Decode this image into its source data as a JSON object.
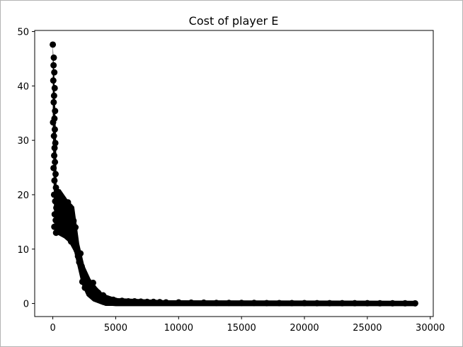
{
  "chart_data": {
    "type": "scatter",
    "title": "Cost of player E",
    "xlabel": "",
    "ylabel": "",
    "xlim": [
      -1440,
      30240
    ],
    "ylim": [
      -2.4,
      50.2
    ],
    "xticks": [
      0,
      5000,
      10000,
      15000,
      20000,
      25000,
      30000
    ],
    "yticks": [
      0,
      10,
      20,
      30,
      40,
      50
    ],
    "grid": false,
    "legend": "none",
    "marker_color": "#000000",
    "series": [
      {
        "points": [
          [
            0,
            47.6
          ],
          [
            80,
            45.2
          ],
          [
            60,
            43.8
          ],
          [
            120,
            42.5
          ],
          [
            40,
            41.0
          ],
          [
            150,
            39.6
          ],
          [
            100,
            38.2
          ],
          [
            70,
            37.0
          ],
          [
            180,
            35.4
          ],
          [
            130,
            34.0
          ],
          [
            20,
            33.3
          ],
          [
            160,
            32.0
          ],
          [
            90,
            30.8
          ],
          [
            200,
            29.5
          ],
          [
            140,
            28.6
          ],
          [
            110,
            27.2
          ],
          [
            170,
            26.0
          ],
          [
            60,
            24.9
          ],
          [
            220,
            23.8
          ],
          [
            130,
            22.6
          ],
          [
            250,
            21.3
          ],
          [
            100,
            20.0
          ],
          [
            190,
            18.8
          ],
          [
            280,
            17.6
          ],
          [
            150,
            16.4
          ],
          [
            230,
            15.3
          ],
          [
            120,
            14.1
          ],
          [
            260,
            13.0
          ],
          [
            400,
            20.5
          ],
          [
            500,
            19.2
          ],
          [
            650,
            18.0
          ],
          [
            800,
            17.2
          ],
          [
            950,
            16.3
          ],
          [
            1100,
            15.4
          ],
          [
            450,
            13.5
          ],
          [
            600,
            14.6
          ],
          [
            750,
            12.9
          ],
          [
            900,
            13.8
          ],
          [
            1050,
            12.6
          ],
          [
            1200,
            18.6
          ],
          [
            1350,
            17.8
          ],
          [
            1500,
            16.5
          ],
          [
            1650,
            15.2
          ],
          [
            1800,
            14.0
          ],
          [
            1300,
            12.2
          ],
          [
            1450,
            11.4
          ],
          [
            1600,
            11.8
          ],
          [
            1750,
            10.6
          ],
          [
            1900,
            9.8
          ],
          [
            2000,
            8.7
          ],
          [
            2100,
            7.6
          ],
          [
            2200,
            9.2
          ],
          [
            2300,
            6.8
          ],
          [
            2400,
            5.9
          ],
          [
            2500,
            5.2
          ],
          [
            2600,
            4.4
          ],
          [
            2700,
            3.8
          ],
          [
            2800,
            3.2
          ],
          [
            2350,
            4.0
          ],
          [
            2550,
            2.9
          ],
          [
            2900,
            2.7
          ],
          [
            3000,
            2.2
          ],
          [
            3200,
            3.8
          ],
          [
            3400,
            1.9
          ],
          [
            3300,
            1.4
          ],
          [
            3600,
            2.0
          ],
          [
            3800,
            1.1
          ],
          [
            4000,
            1.5
          ],
          [
            4200,
            0.9
          ],
          [
            4400,
            0.8
          ],
          [
            4600,
            0.6
          ],
          [
            4800,
            0.7
          ],
          [
            5000,
            0.5
          ],
          [
            5500,
            0.5
          ],
          [
            6000,
            0.4
          ],
          [
            6500,
            0.4
          ],
          [
            7000,
            0.35
          ],
          [
            7500,
            0.3
          ],
          [
            8000,
            0.3
          ],
          [
            8500,
            0.25
          ],
          [
            9000,
            0.2
          ],
          [
            10000,
            0.2
          ],
          [
            11000,
            0.15
          ],
          [
            12000,
            0.15
          ],
          [
            13000,
            0.1
          ],
          [
            14000,
            0.1
          ],
          [
            15000,
            0.1
          ],
          [
            16000,
            0.1
          ],
          [
            17000,
            0.08
          ],
          [
            18000,
            0.08
          ],
          [
            19000,
            0.07
          ],
          [
            20000,
            0.07
          ],
          [
            21000,
            0.06
          ],
          [
            22000,
            0.06
          ],
          [
            23000,
            0.05
          ],
          [
            24000,
            0.05
          ],
          [
            25000,
            0.05
          ],
          [
            26000,
            0.04
          ],
          [
            27000,
            0.04
          ],
          [
            28000,
            0.04
          ],
          [
            28800,
            0.03
          ]
        ]
      }
    ]
  }
}
